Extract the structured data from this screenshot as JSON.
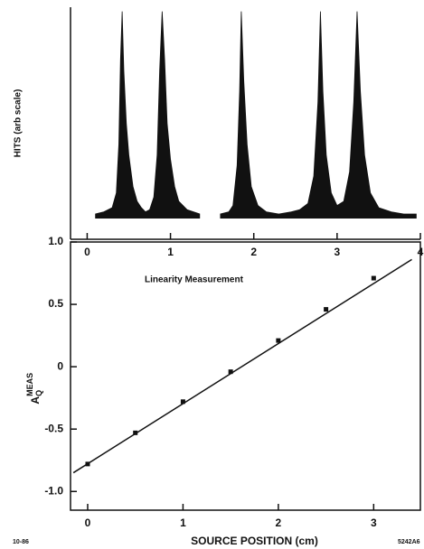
{
  "chart_data": [
    {
      "type": "area",
      "ylabel": "HITS (arb scale)",
      "x": [
        0.1,
        0.2,
        0.3,
        0.35,
        0.38,
        0.4,
        0.42,
        0.44,
        0.47,
        0.5,
        0.55,
        0.6,
        0.65,
        0.7,
        0.75,
        0.8,
        0.84,
        0.87,
        0.9,
        0.93,
        0.96,
        1.0,
        1.05,
        1.1,
        1.2,
        1.35,
        1.45,
        1.6,
        1.7,
        1.75,
        1.8,
        1.83,
        1.85,
        1.88,
        1.92,
        1.97,
        2.05,
        2.15,
        2.3,
        2.45,
        2.55,
        2.65,
        2.72,
        2.77,
        2.8,
        2.83,
        2.87,
        2.93,
        3.0,
        3.08,
        3.15,
        3.2,
        3.24,
        3.28,
        3.33,
        3.4,
        3.5,
        3.65,
        3.8,
        3.95
      ],
      "values": [
        2,
        3,
        5,
        12,
        35,
        75,
        98,
        70,
        45,
        30,
        15,
        8,
        5,
        3,
        4,
        10,
        30,
        70,
        98,
        75,
        45,
        28,
        15,
        8,
        4,
        2,
        null,
        2,
        3,
        6,
        25,
        60,
        98,
        65,
        35,
        15,
        6,
        3,
        2,
        3,
        4,
        7,
        20,
        55,
        98,
        60,
        30,
        12,
        6,
        8,
        22,
        55,
        98,
        60,
        30,
        12,
        5,
        3,
        2,
        2
      ],
      "color": "#111111",
      "xlim": [
        -0.2,
        4
      ],
      "xticks": [
        0,
        1,
        2,
        3,
        4
      ],
      "ylim": [
        -10,
        100
      ]
    },
    {
      "type": "scatter",
      "annotation": "Linearity Measurement",
      "xlabel": "SOURCE POSITION (cm)",
      "ylabel": {
        "main": "A",
        "sub": "Q",
        "sup": "MEAS"
      },
      "x": [
        0,
        0.5,
        1,
        1.5,
        2,
        2.5,
        3
      ],
      "values": [
        -0.78,
        -0.53,
        -0.28,
        -0.04,
        0.21,
        0.46,
        0.71
      ],
      "fit": {
        "x": [
          -0.15,
          3.4
        ],
        "values": [
          -0.85,
          0.86
        ]
      },
      "color": "#111111",
      "xlim": [
        -0.18,
        3.49
      ],
      "xticks": [
        0,
        1,
        2,
        3
      ],
      "ylim": [
        -1.15,
        1.0
      ],
      "yticks": [
        {
          "value": -1,
          "label": "-1.0"
        },
        -0.5,
        0,
        0.5,
        {
          "value": 1,
          "label": "1.0"
        }
      ]
    }
  ],
  "footer": {
    "left": "10-86",
    "right": "5242A6"
  }
}
